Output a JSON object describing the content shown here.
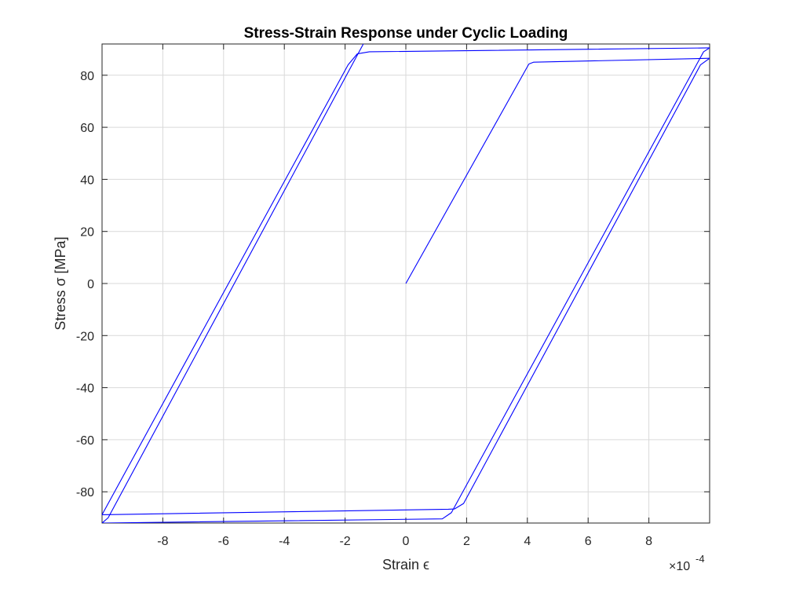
{
  "chart_data": {
    "type": "line",
    "title": "Stress-Strain Response under Cyclic Loading",
    "xlabel": "Strain ϵ",
    "ylabel": "Stress σ [MPa]",
    "x_exponent_label": "×10",
    "x_exponent_power": "-4",
    "x_scale": 0.0001,
    "xlim": [
      -10.0,
      10.0
    ],
    "ylim": [
      -92,
      92
    ],
    "xticks": [
      -8,
      -6,
      -4,
      -2,
      0,
      2,
      4,
      6,
      8
    ],
    "xtick_labels": [
      "-8",
      "-6",
      "-4",
      "-2",
      "0",
      "2",
      "4",
      "6",
      "8"
    ],
    "yticks": [
      -80,
      -60,
      -40,
      -20,
      0,
      20,
      40,
      60,
      80
    ],
    "ytick_labels": [
      "-80",
      "-60",
      "-40",
      "-20",
      "0",
      "20",
      "40",
      "60",
      "80"
    ],
    "grid": true,
    "series": [
      {
        "color": "#0000ff",
        "x": [
          0,
          4.05,
          4.2,
          10.0,
          9.7,
          1.9,
          1.6,
          1.4,
          -10.0,
          -1.9,
          -1.6,
          -1.2,
          10.0,
          9.8,
          1.5,
          1.2,
          -10.0,
          -9.8,
          -1.4
        ],
        "y": [
          0,
          84.3,
          85.0,
          86.5,
          84.0,
          -84.5,
          -86.6,
          -86.7,
          -88.8,
          84.0,
          88.2,
          89.0,
          90.5,
          89.0,
          -88.0,
          -90.4,
          -92.0,
          -90.0,
          92.0
        ]
      }
    ]
  }
}
